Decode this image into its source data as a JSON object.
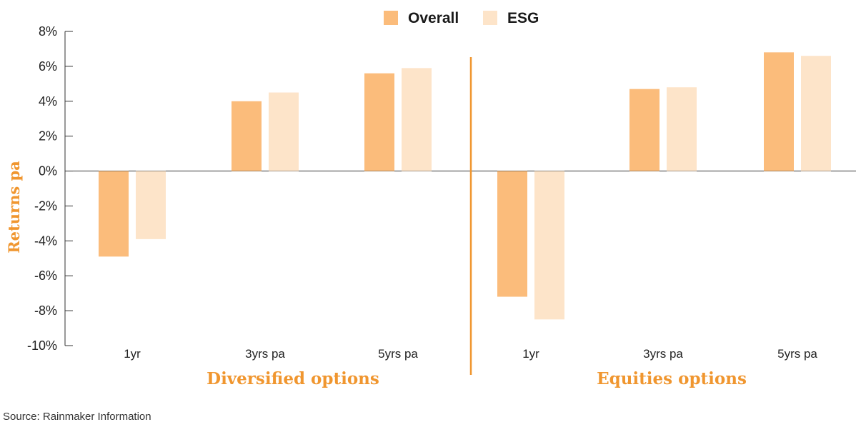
{
  "chart_data": {
    "type": "bar",
    "groups": [
      {
        "name": "Diversified options",
        "categories": [
          "1yr",
          "3yrs pa",
          "5yrs pa"
        ]
      },
      {
        "name": "Equities options",
        "categories": [
          "1yr",
          "3yrs pa",
          "5yrs pa"
        ]
      }
    ],
    "series": [
      {
        "name": "Overall",
        "color": "#fbbc7b",
        "values": [
          -4.9,
          4.0,
          5.6,
          -7.2,
          4.7,
          6.8
        ]
      },
      {
        "name": "ESG",
        "color": "#fde4c9",
        "values": [
          -3.9,
          4.5,
          5.9,
          -8.5,
          4.8,
          6.6
        ]
      }
    ],
    "ylabel": "Returns pa",
    "ylim": [
      -10,
      8
    ],
    "yticks": [
      8,
      6,
      4,
      2,
      0,
      -2,
      -4,
      -6,
      -8,
      -10
    ],
    "ytick_labels": [
      "8%",
      "6%",
      "4%",
      "2%",
      "0%",
      "-2%",
      "-4%",
      "-6%",
      "-8%",
      "-10%"
    ],
    "legend_position": "top-center",
    "grid": false,
    "accent_color": "#f0962f"
  },
  "source": "Source: Rainmaker Information"
}
